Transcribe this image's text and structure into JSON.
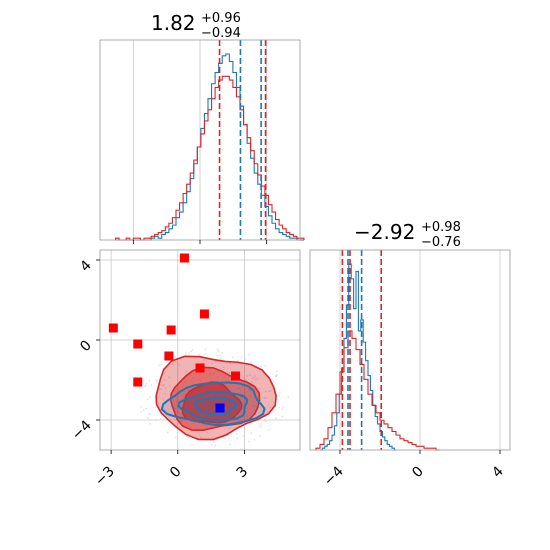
{
  "colors": {
    "model_a": "#1f77b4",
    "model_b": "#d62728",
    "marker": "#ff0000",
    "truth": "#0000ff",
    "grid": "#c8c8c8",
    "frame": "#9a9a9a"
  },
  "chart_data": {
    "type": "corner",
    "grid": true,
    "panels": [
      {
        "id": "hist-param1",
        "type": "histogram",
        "title": {
          "value": "1.82",
          "plus": "+0.96",
          "minus": "−0.94"
        },
        "xlim": [
          -4.5,
          4.5
        ],
        "quantiles": {
          "model_a": [
            1.82,
            2.75
          ],
          "model_b": [
            0.88,
            2.95
          ]
        },
        "series": [
          {
            "name": "",
            "color_key": "model_a",
            "edges_start": -3.8,
            "bin_width": 0.16,
            "counts": [
              0,
              0,
              0,
              0,
              0,
              0,
              0,
              0,
              0,
              0,
              1,
              2,
              1,
              3,
              4,
              6,
              8,
              12,
              15,
              20,
              26,
              33,
              41,
              50,
              60,
              68,
              76,
              84,
              90,
              95,
              99,
              100,
              96,
              90,
              82,
              72,
              62,
              52,
              44,
              36,
              30,
              24,
              18,
              13,
              9,
              6,
              4,
              3,
              2,
              1,
              1,
              0,
              0
            ]
          },
          {
            "name": "",
            "color_key": "model_b",
            "edges_start": -3.8,
            "bin_width": 0.16,
            "counts": [
              1,
              0,
              0,
              1,
              0,
              1,
              1,
              0,
              1,
              1,
              2,
              3,
              4,
              5,
              7,
              9,
              12,
              16,
              20,
              25,
              30,
              36,
              43,
              50,
              57,
              64,
              70,
              76,
              82,
              86,
              88,
              88,
              86,
              82,
              77,
              70,
              62,
              55,
              48,
              41,
              35,
              29,
              24,
              19,
              15,
              11,
              8,
              6,
              4,
              3,
              2,
              1,
              1
            ]
          }
        ]
      },
      {
        "id": "hist-param2",
        "type": "histogram",
        "title": {
          "value": "−2.92",
          "plus": "+0.98",
          "minus": "−0.76"
        },
        "xlim": [
          -5.5,
          4.5
        ],
        "xticks": [
          "−4",
          "0",
          "4"
        ],
        "xtick_values": [
          -4,
          0,
          4
        ],
        "quantiles": {
          "model_a": [
            -3.6,
            -2.92
          ],
          "model_b": [
            -3.88,
            -3.5,
            -1.94
          ]
        },
        "series": [
          {
            "name": "",
            "color_key": "model_a",
            "edges_start": -5.0,
            "bin_width": 0.12,
            "counts": [
              0,
              1,
              2,
              3,
              5,
              8,
              13,
              20,
              30,
              44,
              60,
              78,
              100,
              92,
              76,
              96,
              64,
              70,
              58,
              48,
              40,
              32,
              24,
              18,
              14,
              10,
              7,
              5,
              3,
              2,
              1,
              0
            ]
          },
          {
            "name": "",
            "color_key": "model_b",
            "edges_start": -5.2,
            "bin_width": 0.2,
            "counts": [
              1,
              3,
              6,
              12,
              20,
              30,
              42,
              55,
              64,
              60,
              54,
              46,
              38,
              30,
              24,
              20,
              16,
              14,
              12,
              10,
              8,
              6,
              5,
              4,
              3,
              2,
              2,
              1,
              1,
              1,
              0
            ]
          }
        ]
      },
      {
        "id": "scatter-2d",
        "type": "scatter_contour",
        "xlim": [
          -3.5,
          5.5
        ],
        "ylim": [
          -5.5,
          4.5
        ],
        "xticks": [
          "−3",
          "0",
          "3"
        ],
        "xtick_values": [
          -3,
          0,
          3
        ],
        "yticks": [
          "4",
          "0",
          "−4"
        ],
        "ytick_values": [
          4,
          0,
          -4
        ],
        "markers": {
          "red_squares": [
            [
              -2.9,
              0.6
            ],
            [
              -1.8,
              -0.2
            ],
            [
              -1.8,
              -2.1
            ],
            [
              -0.4,
              -0.8
            ],
            [
              -0.3,
              0.5
            ],
            [
              0.3,
              4.1
            ],
            [
              1.2,
              1.3
            ],
            [
              1.0,
              -1.4
            ],
            [
              2.6,
              -1.8
            ]
          ],
          "blue_squares": [
            [
              1.9,
              -3.4
            ]
          ]
        },
        "contours": {
          "model_b_levels": [
            {
              "cx": 1.6,
              "cy": -2.8,
              "rx": 2.7,
              "ry": 2.0
            },
            {
              "cx": 1.6,
              "cy": -3.0,
              "rx": 2.0,
              "ry": 1.5
            },
            {
              "cx": 1.5,
              "cy": -3.2,
              "rx": 1.3,
              "ry": 1.0
            }
          ],
          "model_a_levels": [
            {
              "cx": 1.7,
              "cy": -3.2,
              "rx": 2.2,
              "ry": 1.05
            },
            {
              "cx": 1.7,
              "cy": -3.3,
              "rx": 1.5,
              "ry": 0.7
            },
            {
              "cx": 1.7,
              "cy": -3.3,
              "rx": 0.9,
              "ry": 0.42
            }
          ]
        }
      }
    ]
  }
}
